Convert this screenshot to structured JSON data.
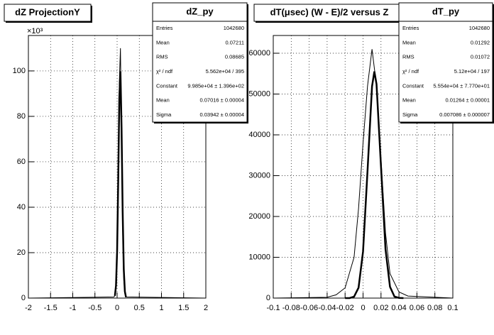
{
  "chart_data": [
    {
      "type": "line",
      "title": "dZ ProjectionY",
      "y_multiplier": "×10³",
      "xlim": [
        -2,
        2
      ],
      "xticks": [
        -2,
        -1.5,
        -1,
        -0.5,
        0,
        0.5,
        1,
        1.5,
        2
      ],
      "ylim": [
        0,
        115.6
      ],
      "yticks": [
        0,
        20,
        40,
        60,
        80,
        100
      ],
      "grid": true,
      "series": [
        {
          "color": "#000000",
          "width": 1,
          "x": [
            -2,
            -0.075,
            -0.05,
            -0.025,
            0,
            0.025,
            0.05,
            0.075,
            0.1,
            0.125,
            0.15,
            0.175,
            0.2,
            2
          ],
          "values": [
            0,
            0.5,
            1,
            4,
            18,
            55,
            95,
            110,
            70,
            30,
            8,
            2,
            0.5,
            0
          ]
        },
        {
          "color": "#000000",
          "width": 2.5,
          "x": [
            -0.05,
            -0.025,
            0,
            0.025,
            0.05,
            0.075,
            0.1,
            0.125,
            0.15,
            0.175,
            0.2
          ],
          "values": [
            1,
            5.5,
            20.6,
            52,
            88,
            99.8,
            75,
            38,
            12.7,
            2.9,
            0.4
          ]
        }
      ],
      "stats": {
        "title": "dZ_py",
        "rows": [
          [
            "Entries",
            "1042680"
          ],
          [
            "Mean",
            "0.07211"
          ],
          [
            "RMS",
            "0.08685"
          ],
          [
            "χ² / ndf",
            "5.562e+04 / 395"
          ],
          [
            "Constant",
            "9.985e+04 ± 1.396e+02"
          ],
          [
            "Mean",
            "0.07016 ± 0.00004"
          ],
          [
            "Sigma",
            "0.03942 ± 0.00004"
          ]
        ]
      }
    },
    {
      "type": "line",
      "title": "dT(μsec) (W - E)/2 versus Z",
      "xlim": [
        -0.1,
        0.1
      ],
      "xticks": [
        -0.1,
        -0.08,
        -0.06,
        -0.04,
        -0.02,
        0,
        0.02,
        0.04,
        0.06,
        0.08,
        0.1
      ],
      "ylim": [
        0,
        64350
      ],
      "yticks": [
        0,
        10000,
        20000,
        30000,
        40000,
        50000,
        60000
      ],
      "grid": true,
      "series": [
        {
          "color": "#000000",
          "width": 1,
          "x": [
            -0.1,
            -0.04,
            -0.03,
            -0.02,
            -0.01,
            -0.005,
            0,
            0.005,
            0.01,
            0.015,
            0.02,
            0.025,
            0.03,
            0.04,
            0.05,
            0.1
          ],
          "values": [
            0,
            200,
            800,
            2500,
            10000,
            22000,
            38000,
            52000,
            61000,
            52000,
            34000,
            16000,
            6000,
            1500,
            500,
            0
          ]
        },
        {
          "color": "#000000",
          "width": 2.5,
          "x": [
            -0.02,
            -0.015,
            -0.01,
            -0.005,
            0,
            0.005,
            0.01,
            0.0126,
            0.015,
            0.02,
            0.025,
            0.03,
            0.035,
            0.04,
            0.045
          ],
          "values": [
            0,
            0,
            350,
            2550,
            11440,
            31260,
            51870,
            55540,
            52430,
            32200,
            12000,
            2770,
            370,
            50,
            0
          ]
        }
      ],
      "stats": {
        "title": "dT_py",
        "rows": [
          [
            "Entries",
            "1042680"
          ],
          [
            "Mean",
            "0.01292"
          ],
          [
            "RMS",
            "0.01072"
          ],
          [
            "χ² / ndf",
            "5.12e+04 / 197"
          ],
          [
            "Constant",
            "5.554e+04 ± 7.770e+01"
          ],
          [
            "Mean",
            "0.01264 ± 0.00001"
          ],
          [
            "Sigma",
            "0.007086 ± 0.000007"
          ]
        ]
      }
    }
  ]
}
